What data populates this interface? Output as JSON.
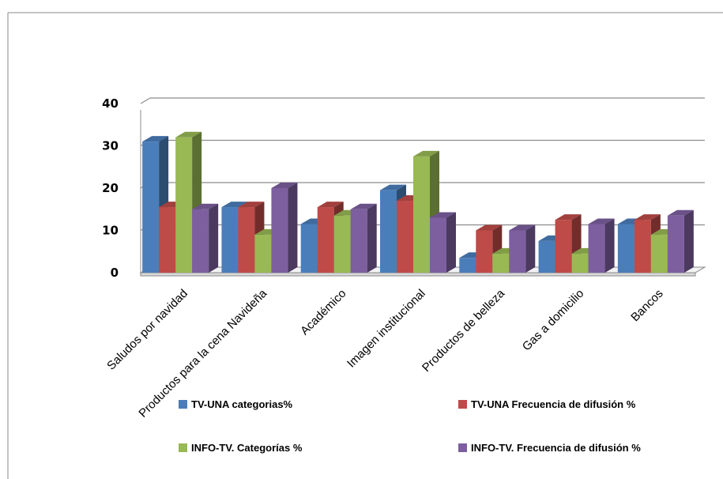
{
  "chart_data": {
    "type": "bar",
    "categories": [
      "Saludos por navidad",
      "Productos  para la cena Navideña",
      "Académico",
      "Imagen institucional",
      "Productos de belleza",
      "Gas a domicilio",
      "Bancos"
    ],
    "series": [
      {
        "name": "TV-UNA categorias%",
        "color": "#4a7ebb",
        "values": [
          31,
          15.5,
          11.5,
          19.5,
          3.5,
          7.5,
          11.5
        ]
      },
      {
        "name": "TV-UNA Frecuencia de difusión %",
        "color": "#be4b48",
        "values": [
          15.5,
          15.5,
          15.5,
          17,
          10,
          12.5,
          12.5
        ]
      },
      {
        "name": "INFO-TV. Categorías %",
        "color": "#98b954",
        "values": [
          32,
          9,
          13.5,
          27.5,
          4.5,
          4.5,
          9
        ]
      },
      {
        "name": "INFO-TV. Frecuencia de difusión %",
        "color": "#7d5fa0",
        "values": [
          15,
          20,
          15,
          13,
          10,
          11.5,
          13.5
        ]
      }
    ],
    "yticks": [
      0,
      10,
      20,
      30,
      40
    ],
    "ylim": [
      0,
      40
    ],
    "grid": true,
    "legend_position": "bottom"
  }
}
